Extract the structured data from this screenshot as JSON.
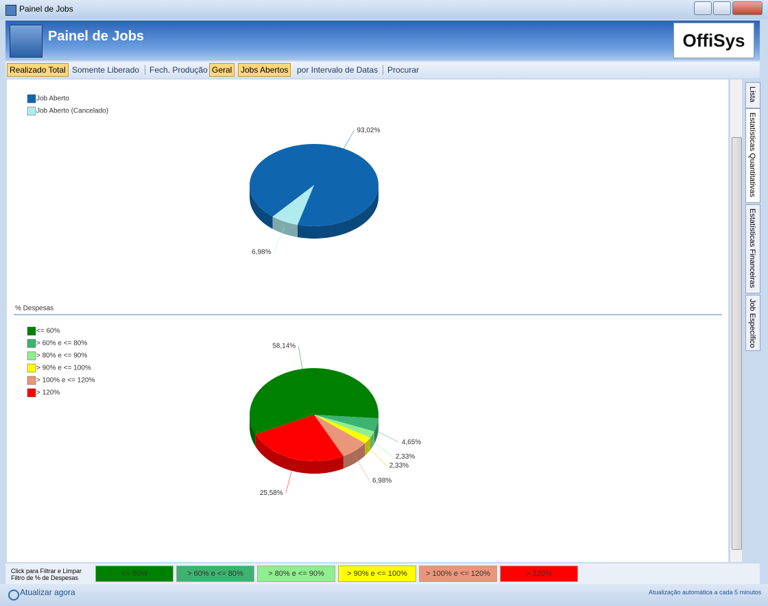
{
  "window": {
    "title": "Painel de Jobs"
  },
  "header": {
    "title": "Painel de Jobs",
    "logo": "OffiSys"
  },
  "toolbar": [
    {
      "label": "Realizado Total",
      "selected": true
    },
    {
      "label": "Somente Liberado",
      "selected": false
    },
    {
      "label": "Fech. Produção",
      "selected": false
    },
    {
      "label": "Geral",
      "selected": true
    },
    {
      "label": "Jobs Abertos",
      "selected": true
    },
    {
      "label": "por Intervalo de Datas",
      "selected": false
    },
    {
      "label": "Procurar",
      "selected": false
    }
  ],
  "side_tabs": [
    "Lista",
    "Estatísticas Quantitativas",
    "Estatísticas Financeiras",
    "Job Específico"
  ],
  "chart_data": [
    {
      "type": "pie",
      "categories": [
        "Job Aberto",
        "Job Aberto (Cancelado)"
      ],
      "values": [
        93.02,
        6.98
      ],
      "value_labels": [
        "93,02%",
        "6,98%"
      ],
      "colors": [
        "#0f66ae",
        "#b0ecef"
      ],
      "start_angle": 130
    },
    {
      "type": "pie",
      "title": "% Despesas",
      "categories": [
        "<= 60%",
        "> 60% e <= 80%",
        "> 80% e <= 90%",
        "> 90% e <= 100%",
        "> 100% e <= 120%",
        "> 120%"
      ],
      "values": [
        58.14,
        4.65,
        2.33,
        2.33,
        6.98,
        25.58
      ],
      "value_labels": [
        "58,14%",
        "4,65%",
        "2,33%",
        "2,33%",
        "6,98%",
        "25,58%"
      ],
      "colors": [
        "#008000",
        "#3cb371",
        "#90ee90",
        "#ffff00",
        "#e9967a",
        "#ff0000"
      ],
      "start_angle": 155
    }
  ],
  "footer": {
    "hint": [
      "Click para Filtrar e Limpar",
      "Filtro de % de Despesas"
    ],
    "filters": [
      {
        "label": "<= 60%",
        "color": "#008000"
      },
      {
        "label": "> 60% e <= 80%",
        "color": "#3cb371"
      },
      {
        "label": "> 80% e <= 90%",
        "color": "#90ee90"
      },
      {
        "label": "> 90% e <= 100%",
        "color": "#ffff00"
      },
      {
        "label": "> 100% e <= 120%",
        "color": "#e9967a"
      },
      {
        "label": "> 120%",
        "color": "#ff0000"
      }
    ]
  },
  "status": {
    "refresh": "Atualizar agora",
    "auto": "Atualização automática a cada 5 minutos"
  }
}
